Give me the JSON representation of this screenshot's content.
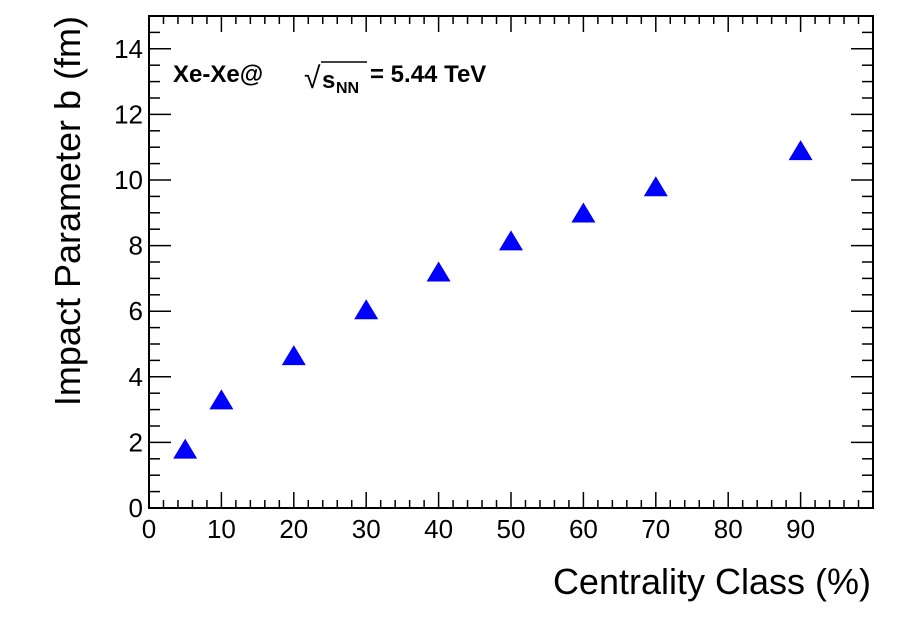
{
  "chart_data": {
    "type": "scatter",
    "title": "",
    "xlabel": "Centrality Class (%)",
    "ylabel": "Impact Parameter b (fm)",
    "xlim": [
      0,
      100
    ],
    "ylim": [
      0,
      15
    ],
    "x_ticks": [
      "0",
      "10",
      "20",
      "30",
      "40",
      "50",
      "60",
      "70",
      "80",
      "90"
    ],
    "y_ticks": [
      "0",
      "2",
      "4",
      "6",
      "8",
      "10",
      "12",
      "14"
    ],
    "grid": false,
    "marker": "triangle-up",
    "marker_color": "#0000ff",
    "series": [
      {
        "name": "Xe-Xe 5.44 TeV",
        "x": [
          5,
          10,
          20,
          30,
          40,
          50,
          60,
          70,
          90
        ],
        "y": [
          1.75,
          3.25,
          4.6,
          6.0,
          7.15,
          8.1,
          8.95,
          9.75,
          10.85
        ]
      }
    ],
    "annotation": {
      "system": "Xe-Xe@",
      "sqrt_symbol": "√",
      "s_label": "s",
      "nn_subscript": "NN",
      "energy": "= 5.44 TeV"
    }
  }
}
